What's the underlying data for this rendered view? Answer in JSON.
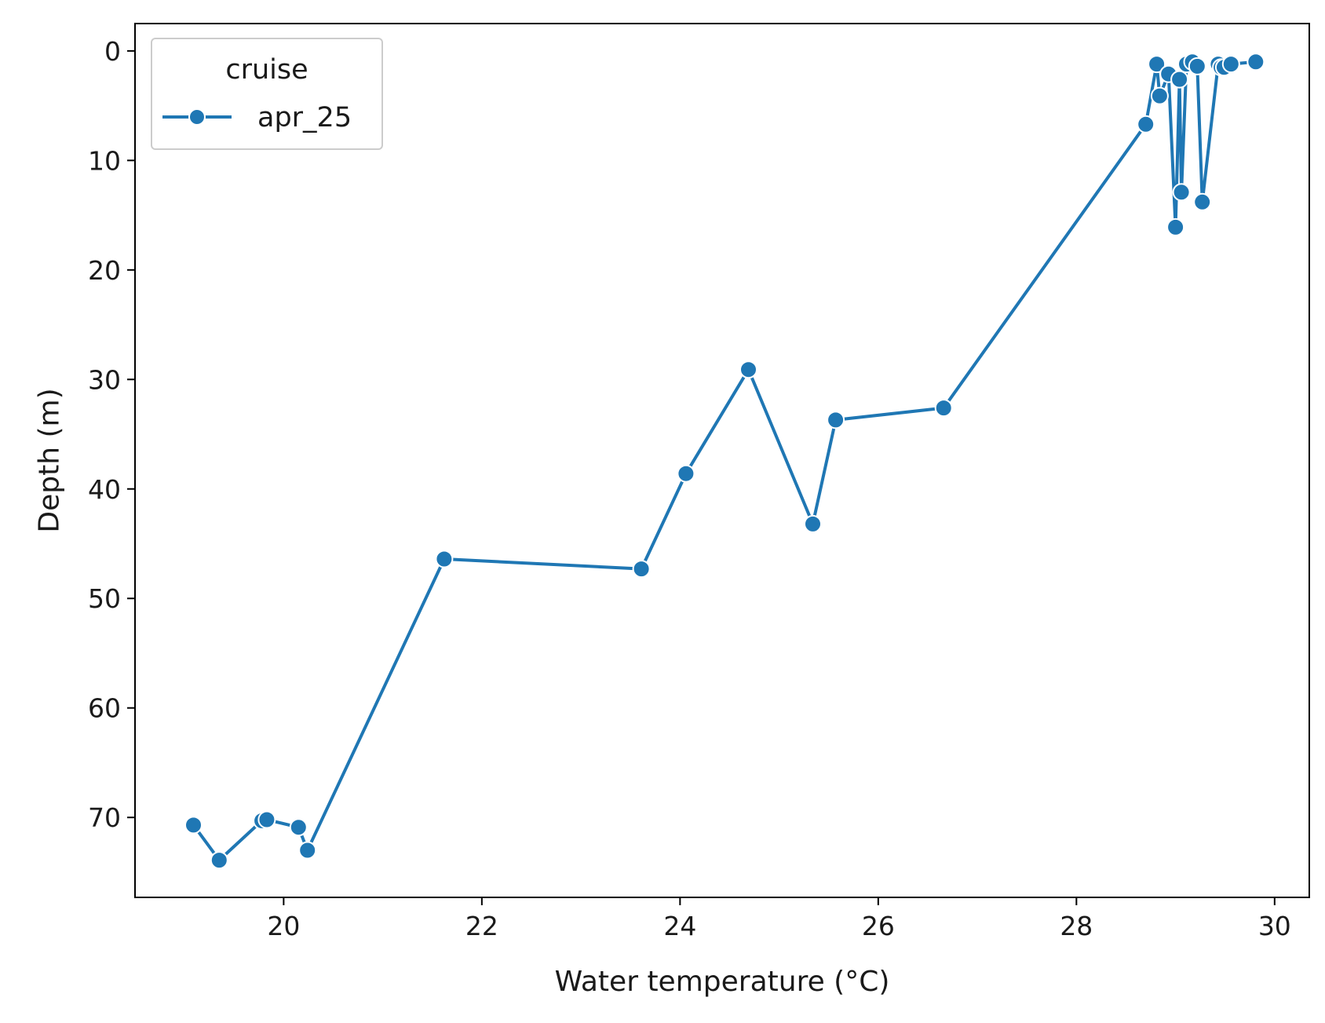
{
  "chart_data": {
    "type": "line",
    "title": "",
    "xlabel": "Water temperature (°C)",
    "ylabel": "Depth (m)",
    "xlim": [
      18.5,
      30.35
    ],
    "ylim": [
      77.3,
      -2.5
    ],
    "y_inverted": true,
    "x_ticks": [
      20,
      22,
      24,
      26,
      28,
      30
    ],
    "y_ticks": [
      0,
      10,
      20,
      30,
      40,
      50,
      60,
      70
    ],
    "grid": false,
    "legend": {
      "title": "cruise",
      "position": "top-left"
    },
    "colors": {
      "series": "#1f77b4",
      "axis": "#000000"
    },
    "series": [
      {
        "name": "apr_25",
        "marker": "circle",
        "points": [
          {
            "x": 19.09,
            "y": 70.7
          },
          {
            "x": 19.35,
            "y": 73.9
          },
          {
            "x": 19.78,
            "y": 70.3
          },
          {
            "x": 19.83,
            "y": 70.2
          },
          {
            "x": 20.15,
            "y": 70.9
          },
          {
            "x": 20.24,
            "y": 73.0
          },
          {
            "x": 21.62,
            "y": 46.4
          },
          {
            "x": 23.61,
            "y": 47.3
          },
          {
            "x": 24.06,
            "y": 38.6
          },
          {
            "x": 24.69,
            "y": 29.1
          },
          {
            "x": 25.34,
            "y": 43.2
          },
          {
            "x": 25.57,
            "y": 33.7
          },
          {
            "x": 26.66,
            "y": 32.6
          },
          {
            "x": 28.7,
            "y": 6.7
          },
          {
            "x": 28.81,
            "y": 1.2
          },
          {
            "x": 28.84,
            "y": 4.1
          },
          {
            "x": 28.93,
            "y": 2.1
          },
          {
            "x": 29.0,
            "y": 16.1
          },
          {
            "x": 29.04,
            "y": 2.6
          },
          {
            "x": 29.06,
            "y": 12.9
          },
          {
            "x": 29.11,
            "y": 1.2
          },
          {
            "x": 29.17,
            "y": 1.0
          },
          {
            "x": 29.22,
            "y": 1.4
          },
          {
            "x": 29.27,
            "y": 13.8
          },
          {
            "x": 29.43,
            "y": 1.2
          },
          {
            "x": 29.46,
            "y": 1.5
          },
          {
            "x": 29.49,
            "y": 1.5
          },
          {
            "x": 29.56,
            "y": 1.2
          },
          {
            "x": 29.81,
            "y": 1.0
          }
        ]
      }
    ]
  }
}
